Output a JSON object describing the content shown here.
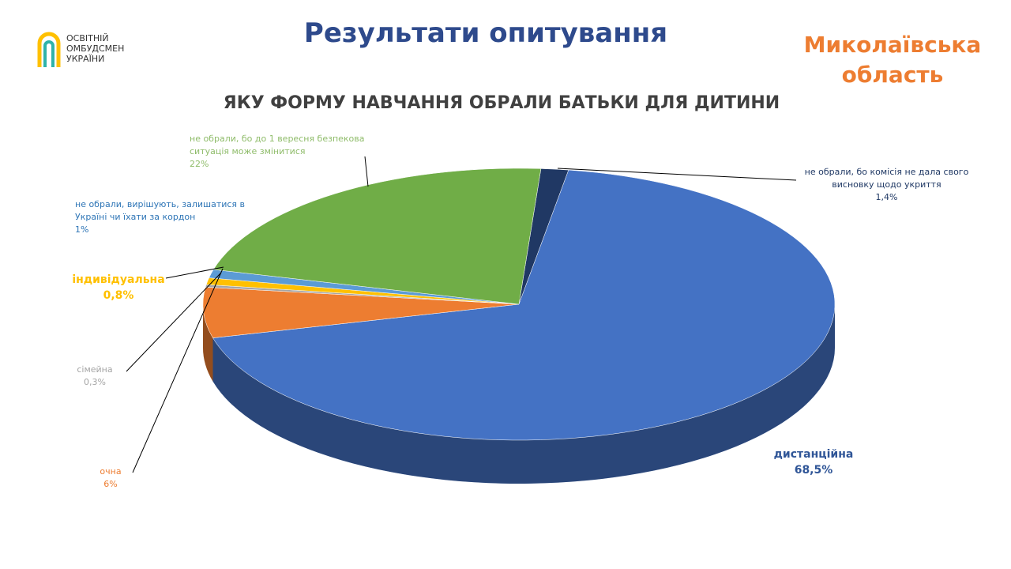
{
  "logo": {
    "lines": [
      "ОСВІТНІЙ",
      "ОМБУДСМЕН",
      "УКРАЇНИ"
    ]
  },
  "header": {
    "title": "Результати опитування",
    "region": [
      "Миколаївська",
      "область"
    ]
  },
  "chart_data": {
    "type": "pie",
    "title": "ЯКУ ФОРМУ НАВЧАННЯ ОБРАЛИ БАТЬКИ ДЛЯ ДИТИНИ",
    "categories": [
      "не обрали, бо комісія не дала свого висновку щодо укриття",
      "дистанційна",
      "очна",
      "сімейна",
      "індивідуальна",
      "не обрали, вирішують, залишатися в Україні чи їхати за кордон",
      "не обрали, бо до 1 вересня безпекова ситуація може змінитися"
    ],
    "values": [
      1.4,
      68.5,
      6,
      0.3,
      0.8,
      1,
      22
    ],
    "value_labels": [
      "1,4%",
      "68,5%",
      "6%",
      "0,3%",
      "0,8%",
      "1%",
      "22%"
    ],
    "colors": [
      "#203864",
      "#4472c4",
      "#ed7d31",
      "#a5a5a5",
      "#ffc000",
      "#5b9bd5",
      "#70ad47"
    ],
    "label_colors": [
      "#1f3864",
      "#2f5597",
      "#ed7d31",
      "#a5a5a5",
      "#ffc000",
      "#2e75b6",
      "#8fbc6a"
    ]
  }
}
